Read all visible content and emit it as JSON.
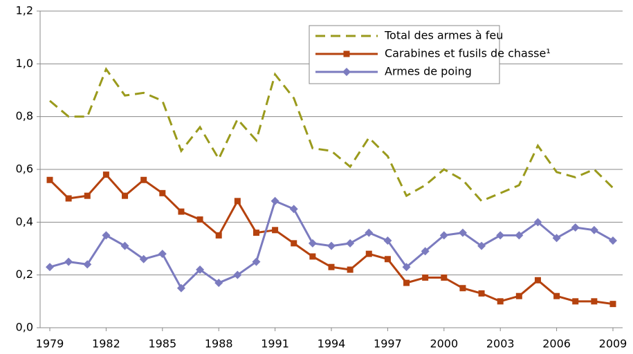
{
  "chart_data": {
    "type": "line",
    "x": [
      1979,
      1980,
      1981,
      1982,
      1983,
      1984,
      1985,
      1986,
      1987,
      1988,
      1989,
      1990,
      1991,
      1992,
      1993,
      1994,
      1995,
      1996,
      1997,
      1998,
      1999,
      2000,
      2001,
      2002,
      2003,
      2004,
      2005,
      2006,
      2007,
      2008,
      2009
    ],
    "xlim": [
      1979,
      2009
    ],
    "xticks": [
      1979,
      1982,
      1985,
      1988,
      1991,
      1994,
      1997,
      2000,
      2003,
      2006,
      2009
    ],
    "ylim": [
      0,
      1.2
    ],
    "yticks": [
      {
        "value": 0,
        "label": "0,0"
      },
      {
        "value": 0.2,
        "label": "0,2"
      },
      {
        "value": 0.4,
        "label": "0,4"
      },
      {
        "value": 0.6,
        "label": "0,6"
      },
      {
        "value": 0.8,
        "label": "0,8"
      },
      {
        "value": 1.0,
        "label": "1,0"
      },
      {
        "value": 1.2,
        "label": "1,2"
      }
    ],
    "grid": true,
    "series": [
      {
        "name": "Total des armes à feu",
        "color": "#9a9a1c",
        "dash": true,
        "marker": "none",
        "values": [
          0.86,
          0.8,
          0.8,
          0.98,
          0.88,
          0.89,
          0.86,
          0.67,
          0.76,
          0.64,
          0.79,
          0.71,
          0.96,
          0.87,
          0.68,
          0.67,
          0.61,
          0.72,
          0.65,
          0.5,
          0.54,
          0.6,
          0.56,
          0.48,
          0.51,
          0.54,
          0.69,
          0.59,
          0.57,
          0.6,
          0.53
        ]
      },
      {
        "name": "Carabines et fusils de chasse¹",
        "color": "#b5420e",
        "dash": false,
        "marker": "square",
        "values": [
          0.56,
          0.49,
          0.5,
          0.58,
          0.5,
          0.56,
          0.51,
          0.44,
          0.41,
          0.35,
          0.48,
          0.36,
          0.37,
          0.32,
          0.27,
          0.23,
          0.22,
          0.28,
          0.26,
          0.17,
          0.19,
          0.19,
          0.15,
          0.13,
          0.1,
          0.12,
          0.18,
          0.12,
          0.1,
          0.1,
          0.09
        ]
      },
      {
        "name": "Armes de poing",
        "color": "#7b7bbf",
        "dash": false,
        "marker": "diamond",
        "values": [
          0.23,
          0.25,
          0.24,
          0.35,
          0.31,
          0.26,
          0.28,
          0.15,
          0.22,
          0.17,
          0.2,
          0.25,
          0.48,
          0.45,
          0.32,
          0.31,
          0.32,
          0.36,
          0.33,
          0.23,
          0.29,
          0.35,
          0.36,
          0.31,
          0.35,
          0.35,
          0.4,
          0.34,
          0.38,
          0.37,
          0.33
        ]
      }
    ]
  }
}
